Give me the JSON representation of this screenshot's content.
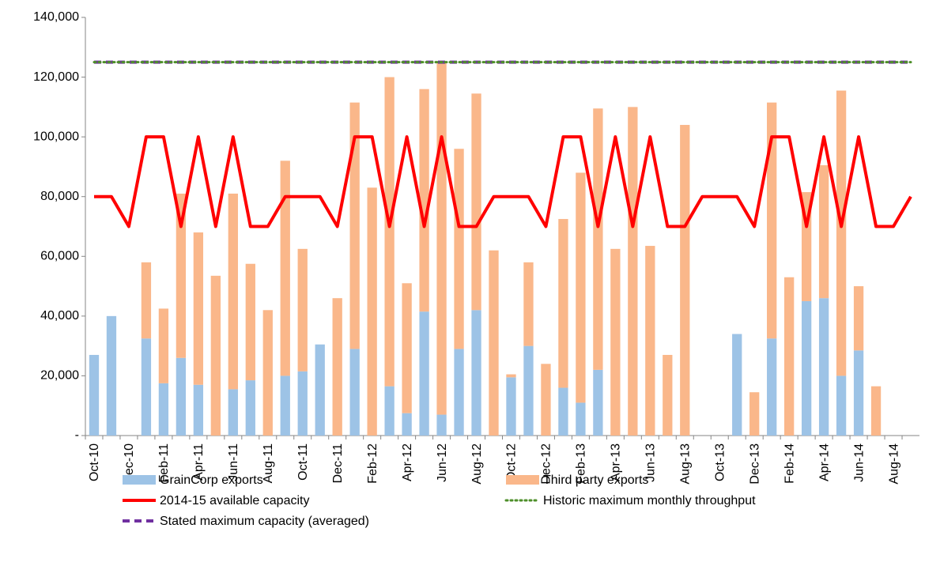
{
  "chart_data": {
    "type": "bar",
    "stacked": true,
    "grid": false,
    "categories": [
      "Oct-10",
      null,
      "Dec-10",
      null,
      "Feb-11",
      null,
      "Apr-11",
      null,
      "Jun-11",
      null,
      "Aug-11",
      null,
      "Oct-11",
      null,
      "Dec-11",
      null,
      "Feb-12",
      null,
      "Apr-12",
      null,
      "Jun-12",
      null,
      "Aug-12",
      null,
      "Oct-12",
      null,
      "Dec-12",
      null,
      "Feb-13",
      null,
      "Apr-13",
      null,
      "Jun-13",
      null,
      "Aug-13",
      null,
      "Oct-13",
      null,
      "Dec-13",
      null,
      "Feb-14",
      null,
      "Apr-14",
      null,
      "Jun-14",
      null,
      "Aug-14",
      null
    ],
    "ylim": [
      0,
      140000
    ],
    "yticks": [
      {
        "value": 0,
        "label": "-"
      },
      {
        "value": 20000,
        "label": "20,000"
      },
      {
        "value": 40000,
        "label": "40,000"
      },
      {
        "value": 60000,
        "label": "60,000"
      },
      {
        "value": 80000,
        "label": "80,000"
      },
      {
        "value": 100000,
        "label": "100,000"
      },
      {
        "value": 120000,
        "label": "120,000"
      },
      {
        "value": 140000,
        "label": "140,000"
      }
    ],
    "series": [
      {
        "name": "GrainCorp exports",
        "type": "bar",
        "color": "#9dc3e6",
        "values": [
          27000,
          40000,
          0,
          32500,
          17500,
          26000,
          17000,
          0,
          15500,
          18500,
          0,
          20000,
          21500,
          30500,
          0,
          29000,
          0,
          16500,
          7500,
          41500,
          7000,
          29000,
          42000,
          0,
          19500,
          30000,
          0,
          16000,
          11000,
          22000,
          0,
          0,
          0,
          0,
          0,
          0,
          0,
          34000,
          0,
          32500,
          0,
          45000,
          46000,
          20000,
          28500,
          0,
          0,
          0
        ]
      },
      {
        "name": "Third party exports",
        "type": "bar",
        "color": "#fab78a",
        "values": [
          0,
          0,
          0,
          25500,
          25000,
          55000,
          51000,
          53500,
          65500,
          39000,
          42000,
          72000,
          41000,
          0,
          46000,
          82500,
          83000,
          103500,
          43500,
          74500,
          118000,
          67000,
          72500,
          62000,
          1000,
          28000,
          24000,
          56500,
          77000,
          87500,
          62500,
          110000,
          63500,
          27000,
          104000,
          0,
          0,
          0,
          14500,
          79000,
          53000,
          36500,
          44500,
          95500,
          21500,
          16500,
          0,
          0
        ]
      },
      {
        "name": "2014-15 available capacity",
        "type": "line",
        "style": "solid",
        "color": "#ff0000",
        "values": [
          80000,
          80000,
          70000,
          100000,
          100000,
          70000,
          100000,
          70000,
          100000,
          70000,
          70000,
          80000,
          80000,
          80000,
          70000,
          100000,
          100000,
          70000,
          100000,
          70000,
          100000,
          70000,
          70000,
          80000,
          80000,
          80000,
          70000,
          100000,
          100000,
          70000,
          100000,
          70000,
          100000,
          70000,
          70000,
          80000,
          80000,
          80000,
          70000,
          100000,
          100000,
          70000,
          100000,
          70000,
          100000,
          70000,
          70000,
          80000
        ]
      },
      {
        "name": "Historic maximum monthly throughput",
        "type": "line",
        "style": "dotted",
        "color": "#4e8f2a",
        "values": [
          125000,
          125000,
          125000,
          125000,
          125000,
          125000,
          125000,
          125000,
          125000,
          125000,
          125000,
          125000,
          125000,
          125000,
          125000,
          125000,
          125000,
          125000,
          125000,
          125000,
          125000,
          125000,
          125000,
          125000,
          125000,
          125000,
          125000,
          125000,
          125000,
          125000,
          125000,
          125000,
          125000,
          125000,
          125000,
          125000,
          125000,
          125000,
          125000,
          125000,
          125000,
          125000,
          125000,
          125000,
          125000,
          125000,
          125000,
          125000
        ]
      },
      {
        "name": "Stated maximum capacity (averaged)",
        "type": "line",
        "style": "dashed",
        "color": "#7030a0",
        "values": [
          125000,
          125000,
          125000,
          125000,
          125000,
          125000,
          125000,
          125000,
          125000,
          125000,
          125000,
          125000,
          125000,
          125000,
          125000,
          125000,
          125000,
          125000,
          125000,
          125000,
          125000,
          125000,
          125000,
          125000,
          125000,
          125000,
          125000,
          125000,
          125000,
          125000,
          125000,
          125000,
          125000,
          125000,
          125000,
          125000,
          125000,
          125000,
          125000,
          125000,
          125000,
          125000,
          125000,
          125000,
          125000,
          125000,
          125000,
          125000
        ]
      }
    ]
  }
}
